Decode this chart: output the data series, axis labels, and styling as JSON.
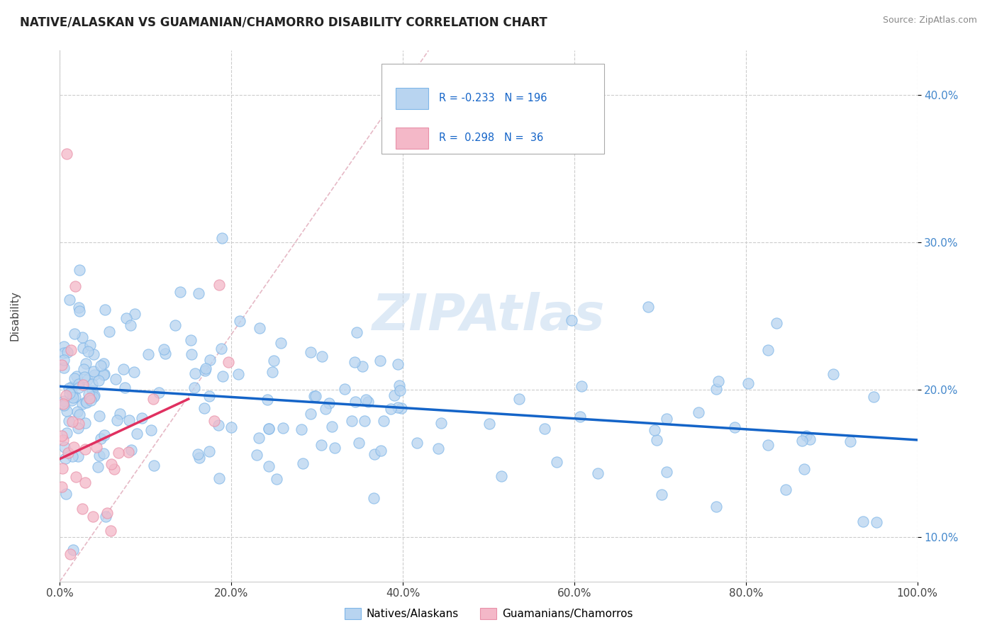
{
  "title": "NATIVE/ALASKAN VS GUAMANIAN/CHAMORRO DISABILITY CORRELATION CHART",
  "source": "Source: ZipAtlas.com",
  "ylabel": "Disability",
  "xlim": [
    0.0,
    1.0
  ],
  "ylim": [
    0.07,
    0.43
  ],
  "legend_r1": "-0.233",
  "legend_n1": "196",
  "legend_r2": "0.298",
  "legend_n2": "36",
  "blue_fill": "#B8D4F0",
  "blue_edge": "#7EB6E8",
  "pink_fill": "#F4B8C8",
  "pink_edge": "#E890A8",
  "blue_line_color": "#1464C8",
  "pink_line_color": "#E03060",
  "diag_line_color": "#E0A0B0",
  "grid_color": "#CCCCCC",
  "watermark_color": "#C8DCF0",
  "background_color": "#FFFFFF",
  "title_fontsize": 12,
  "tick_color": "#4488CC",
  "ylabel_color": "#444444"
}
